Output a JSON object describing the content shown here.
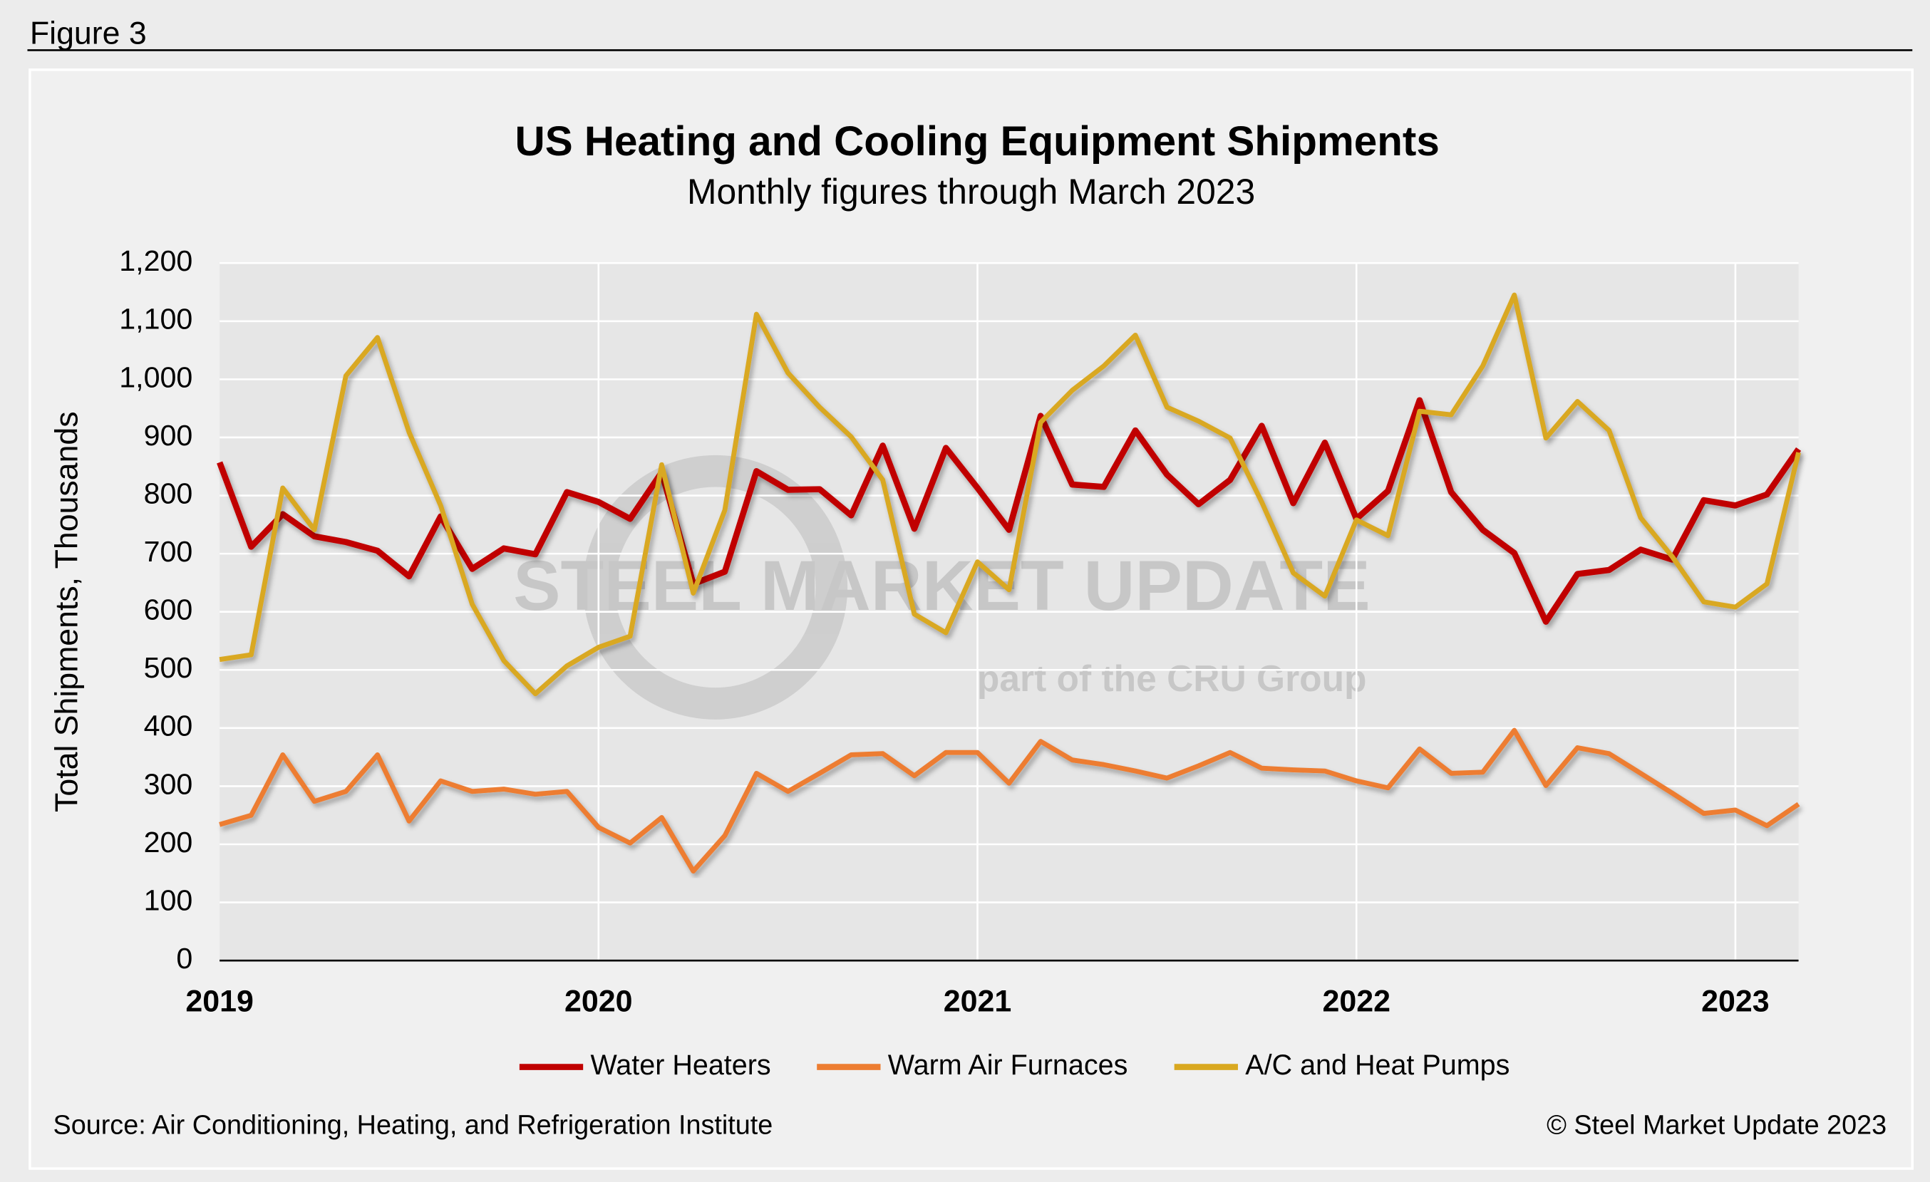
{
  "chart_data": {
    "type": "line",
    "figure_label": "Figure 3",
    "title": "US Heating and Cooling Equipment Shipments",
    "subtitle": "Monthly figures through March 2023",
    "y_label": "Total Shipments, Thousands",
    "source": "Source: Air Conditioning, Heating, and Refrigeration Institute",
    "copyright": "© Steel Market Update 2023",
    "watermark": "STEEL MARKET UPDATE",
    "watermark_sub": "part of the CRU Group",
    "categories": [
      "2019",
      null,
      null,
      null,
      null,
      null,
      null,
      null,
      null,
      null,
      null,
      null,
      "2020",
      null,
      null,
      null,
      null,
      null,
      null,
      null,
      null,
      null,
      null,
      null,
      "2021",
      null,
      null,
      null,
      null,
      null,
      null,
      null,
      null,
      null,
      null,
      null,
      "2022",
      null,
      null,
      null,
      null,
      null,
      null,
      null,
      null,
      null,
      null,
      null,
      "2023",
      null,
      null
    ],
    "series": [
      {
        "name": "Water Heaters",
        "color": "#c00000",
        "values": [
          857,
          712,
          768,
          730,
          720,
          705,
          661,
          764,
          674,
          709,
          699,
          806,
          789,
          760,
          840,
          648,
          669,
          842,
          810,
          811,
          766,
          886,
          743,
          882,
          813,
          741,
          937,
          819,
          815,
          912,
          836,
          785,
          827,
          920,
          787,
          891,
          760,
          808,
          964,
          806,
          741,
          701,
          583,
          665,
          672,
          707,
          690,
          792,
          783,
          802,
          880
        ]
      },
      {
        "name": "Warm Air Furnaces",
        "color": "#ed7d31",
        "values": [
          234,
          250,
          354,
          274,
          291,
          354,
          240,
          309,
          291,
          295,
          286,
          291,
          229,
          202,
          246,
          154,
          215,
          322,
          291,
          322,
          354,
          356,
          318,
          358,
          358,
          305,
          377,
          345,
          337,
          326,
          314,
          335,
          358,
          331,
          328,
          326,
          309,
          297,
          364,
          322,
          324,
          396,
          301,
          366,
          356,
          322,
          288,
          253,
          259,
          232,
          269
        ]
      },
      {
        "name": "A/C and Heat Pumps",
        "color": "#d9a820",
        "values": [
          518,
          526,
          813,
          741,
          1006,
          1072,
          909,
          783,
          613,
          516,
          459,
          507,
          539,
          558,
          853,
          632,
          775,
          1112,
          1011,
          952,
          901,
          827,
          596,
          564,
          686,
          638,
          926,
          981,
          1023,
          1076,
          952,
          928,
          899,
          789,
          667,
          627,
          758,
          731,
          945,
          939,
          1023,
          1145,
          899,
          962,
          912,
          762,
          695,
          617,
          608,
          648,
          874
        ]
      }
    ],
    "ylim": [
      0,
      1200
    ],
    "yticks": [
      0,
      100,
      200,
      300,
      400,
      500,
      600,
      700,
      800,
      900,
      {
        "value": 1000,
        "label": "1,000"
      },
      {
        "value": 1100,
        "label": "1,100"
      },
      {
        "value": 1200,
        "label": "1,200"
      }
    ],
    "grid": true,
    "legend": "bottom"
  }
}
